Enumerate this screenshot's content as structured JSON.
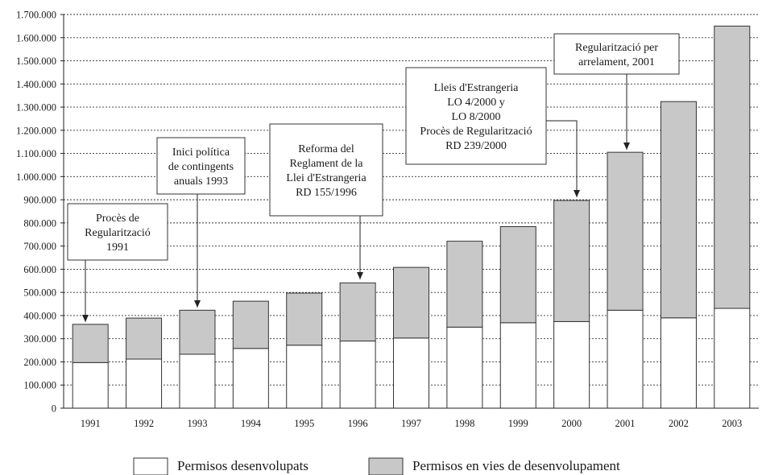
{
  "chart_data": {
    "type": "bar",
    "stacked": true,
    "categories": [
      "1991",
      "1992",
      "1993",
      "1994",
      "1995",
      "1996",
      "1997",
      "1998",
      "1999",
      "2000",
      "2001",
      "2002",
      "2003"
    ],
    "series": [
      {
        "name": "Permisos desenvolupats",
        "color": "#ffffff",
        "values": [
          197000,
          212000,
          233000,
          258000,
          272000,
          290000,
          303000,
          350000,
          369000,
          374000,
          423000,
          390000,
          431000
        ]
      },
      {
        "name": "Permisos en vies de desenvolupament",
        "color": "#c8c8c8",
        "values": [
          165000,
          177000,
          190000,
          204000,
          225000,
          251000,
          305000,
          371000,
          415000,
          523000,
          682000,
          934000,
          1219000
        ]
      }
    ],
    "ylim": [
      0,
      1700000
    ],
    "ytick_labels": [
      "0",
      "100.000",
      "200.000",
      "300.000",
      "400.000",
      "500.000",
      "600.000",
      "700.000",
      "800.000",
      "900.000",
      "1.000.000",
      "1.100.000",
      "1.200.000",
      "1.300.000",
      "1.400.000",
      "1.500.000",
      "1.600.000",
      "1.700.000"
    ],
    "grid": "horizontal dotted",
    "legend_position": "bottom",
    "annotations": [
      {
        "target": "1991",
        "lines": [
          "Procès de",
          "Regularització",
          "1991"
        ]
      },
      {
        "target": "1993",
        "lines": [
          "Inici política",
          "de contingents",
          "anuals 1993"
        ]
      },
      {
        "target": "1996",
        "lines": [
          "Reforma del",
          "Reglament de la",
          "Llei d'Estrangeria",
          "RD 155/1996"
        ]
      },
      {
        "target": "2000",
        "lines": [
          "Lleis d'Estrangeria",
          "LO 4/2000 y",
          "LO 8/2000",
          "Procès de Regularització",
          "RD 239/2000"
        ]
      },
      {
        "target": "2001",
        "lines": [
          "Regularització per",
          "arrelament, 2001"
        ]
      }
    ]
  }
}
